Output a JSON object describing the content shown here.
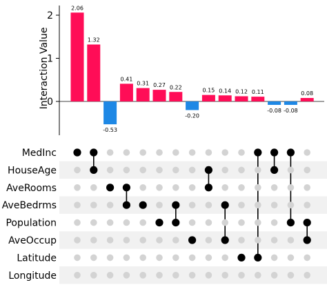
{
  "chart_data": {
    "type": "bar",
    "ylabel": "Interaction Value",
    "yticks": [
      0,
      1,
      2
    ],
    "ylim": [
      -0.95,
      2.3
    ],
    "values": [
      2.06,
      1.32,
      -0.53,
      0.41,
      0.31,
      0.27,
      0.22,
      -0.2,
      0.15,
      0.14,
      0.12,
      0.11,
      -0.08,
      -0.08,
      0.08
    ],
    "value_labels": [
      "2.06",
      "1.32",
      "-0.53",
      "0.41",
      "0.31",
      "0.27",
      "0.22",
      "-0.20",
      "0.15",
      "0.14",
      "0.12",
      "0.11",
      "-0.08",
      "-0.08",
      "0.08"
    ],
    "positive_color": "#ff0d57",
    "negative_color": "#1e88e5",
    "features": [
      "MedInc",
      "HouseAge",
      "AveRooms",
      "AveBedrms",
      "Population",
      "AveOccup",
      "Latitude",
      "Longitude"
    ],
    "memberships": [
      [
        0
      ],
      [
        0,
        1
      ],
      [
        2
      ],
      [
        2,
        3
      ],
      [
        3
      ],
      [
        4
      ],
      [
        3,
        4
      ],
      [
        5
      ],
      [
        1,
        2
      ],
      [
        3,
        5
      ],
      [
        6
      ],
      [
        0,
        6
      ],
      [
        0,
        1
      ],
      [
        0,
        4
      ],
      [
        4,
        5
      ]
    ]
  }
}
